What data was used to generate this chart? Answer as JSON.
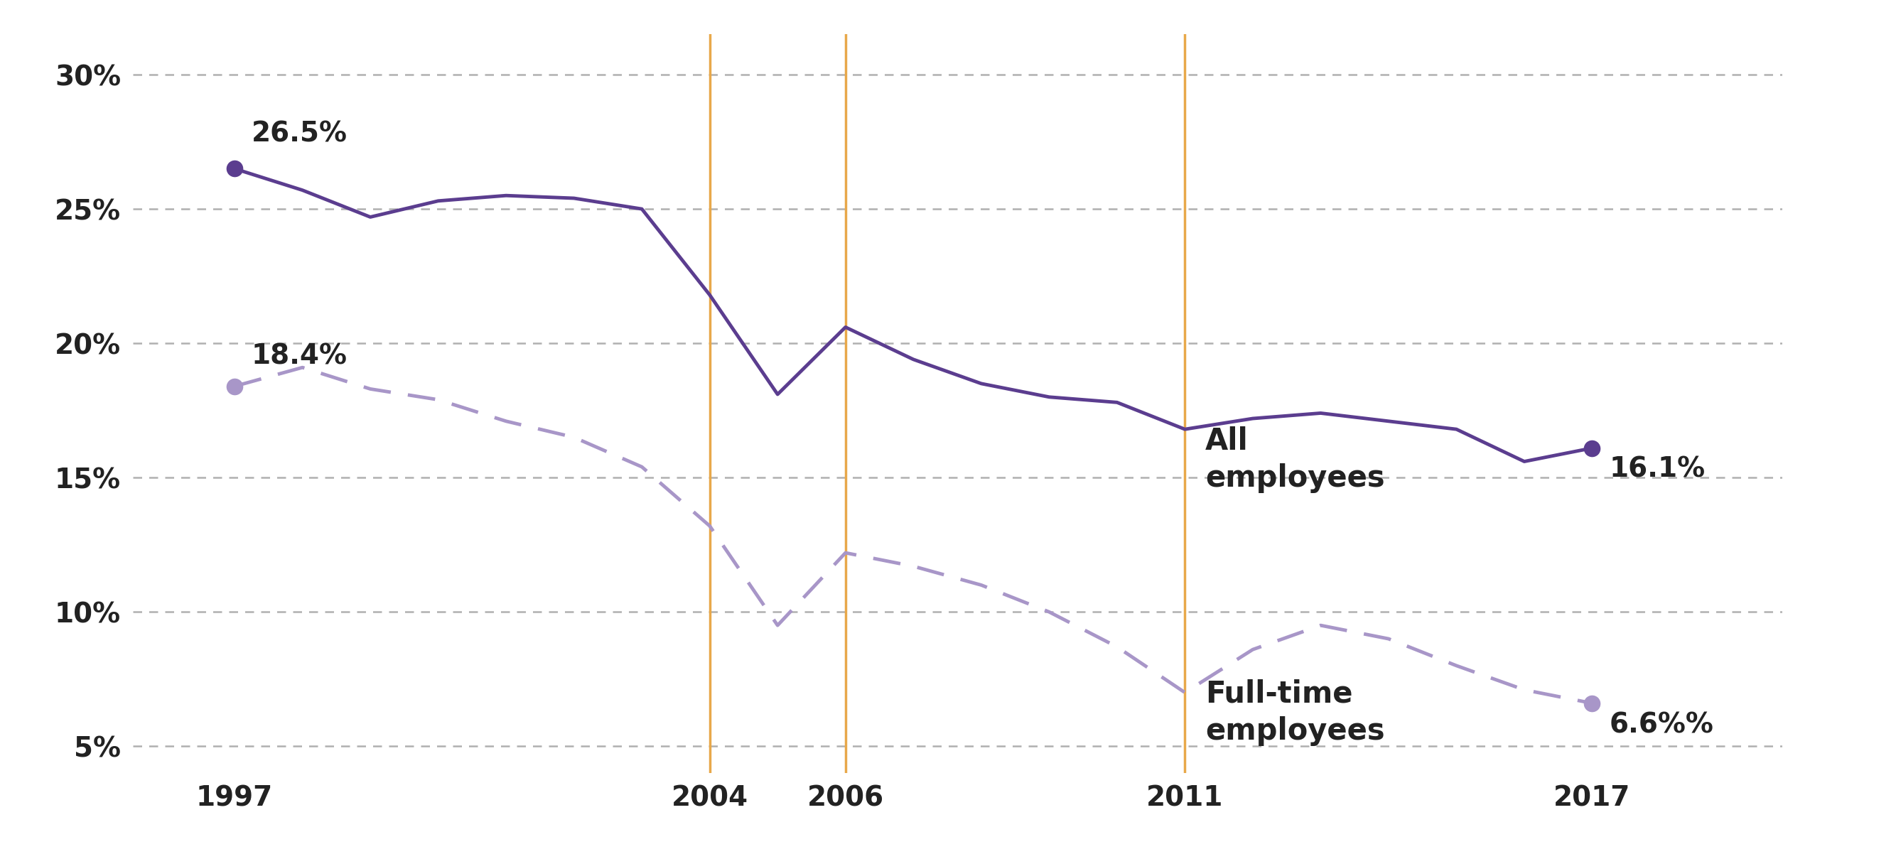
{
  "all_employees": {
    "years": [
      1997,
      1998,
      1999,
      2000,
      2001,
      2002,
      2003,
      2004,
      2005,
      2006,
      2007,
      2008,
      2009,
      2010,
      2011,
      2012,
      2013,
      2014,
      2015,
      2016,
      2017
    ],
    "values": [
      26.5,
      25.7,
      24.7,
      25.3,
      25.5,
      25.4,
      25.0,
      21.8,
      18.1,
      20.6,
      19.4,
      18.5,
      18.0,
      17.8,
      16.8,
      17.2,
      17.4,
      17.1,
      16.8,
      15.6,
      16.1
    ]
  },
  "fulltime_employees": {
    "years": [
      1997,
      1998,
      1999,
      2000,
      2001,
      2002,
      2003,
      2004,
      2005,
      2006,
      2007,
      2008,
      2009,
      2010,
      2011,
      2012,
      2013,
      2014,
      2015,
      2016,
      2017
    ],
    "values": [
      18.4,
      19.1,
      18.3,
      17.9,
      17.1,
      16.5,
      15.4,
      13.2,
      9.5,
      12.2,
      11.7,
      11.0,
      10.0,
      8.7,
      7.0,
      8.6,
      9.5,
      9.0,
      8.0,
      7.1,
      6.6
    ]
  },
  "vertical_lines": [
    2004,
    2006,
    2011
  ],
  "all_color": "#5b3d8f",
  "fulltime_color": "#a896c8",
  "vline_color": "#e8a84a",
  "annotation_1997_all": "26.5%",
  "annotation_1997_ft": "18.4%",
  "annotation_2017_all": "16.1%",
  "annotation_2017_ft": "6.6%%",
  "label_all": "All\nemployees",
  "label_ft": "Full-time\nemployees",
  "ylim_low": 4.0,
  "ylim_high": 31.5,
  "yticks": [
    5,
    10,
    15,
    20,
    25,
    30
  ],
  "ytick_labels": [
    "5%",
    "10%",
    "15%",
    "20%",
    "25%",
    "30%"
  ],
  "xtick_years": [
    1997,
    2004,
    2006,
    2011,
    2017
  ],
  "background_color": "#ffffff",
  "grid_color": "#b0b0b0",
  "tick_fontsize": 28,
  "annot_fontsize": 28,
  "label_fontsize": 30
}
